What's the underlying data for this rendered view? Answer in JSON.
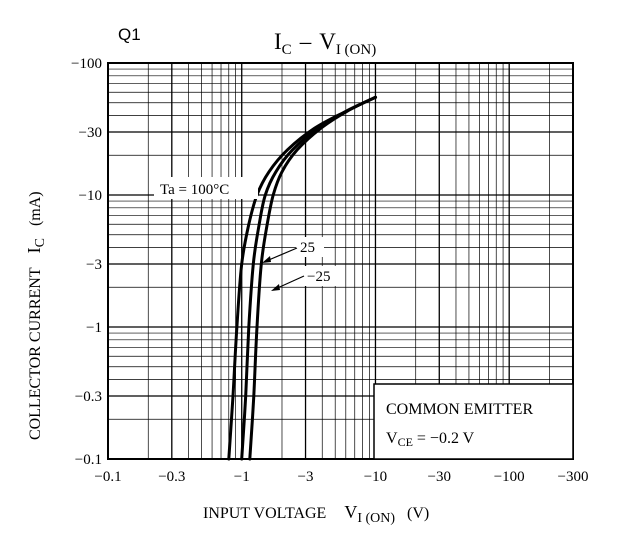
{
  "chart_data": {
    "type": "line",
    "panel_label": "Q1",
    "title": {
      "main": "I",
      "main_sub": "C",
      "dash": "–",
      "second": "V",
      "second_sub": "I (ON)"
    },
    "xlabel": {
      "main": "INPUT VOLTAGE",
      "sym": "V",
      "sym_sub": "I (ON)",
      "unit": "(V)"
    },
    "ylabel": {
      "main": "COLLECTOR CURRENT",
      "sym": "I",
      "sym_sub": "C",
      "unit": "(mA)"
    },
    "x_scale": "log",
    "y_scale": "log",
    "xlim_abs": [
      0.1,
      300
    ],
    "ylim_abs": [
      0.1,
      100
    ],
    "x_ticks": [
      {
        "value": 0.1,
        "label": "−0.1"
      },
      {
        "value": 0.3,
        "label": "−0.3"
      },
      {
        "value": 1,
        "label": "−1"
      },
      {
        "value": 3,
        "label": "−3"
      },
      {
        "value": 10,
        "label": "−10"
      },
      {
        "value": 30,
        "label": "−30"
      },
      {
        "value": 100,
        "label": "−100"
      },
      {
        "value": 300,
        "label": "−300"
      }
    ],
    "y_ticks": [
      {
        "value": 100,
        "label": "−100"
      },
      {
        "value": 30,
        "label": "−30"
      },
      {
        "value": 10,
        "label": "−10"
      },
      {
        "value": 3,
        "label": "−3"
      },
      {
        "value": 1,
        "label": "−1"
      },
      {
        "value": 0.3,
        "label": "−0.3"
      },
      {
        "value": 0.1,
        "label": "−0.1"
      }
    ],
    "grid": true,
    "series": [
      {
        "name": "Ta = 100°C",
        "label": "Ta = 100°C",
        "x": [
          0.8,
          0.86,
          0.92,
          1.0,
          1.13,
          1.3,
          1.6,
          2.2,
          3.5,
          6.0,
          10.0
        ],
        "y": [
          0.1,
          0.3,
          1,
          3,
          6,
          10,
          15,
          22,
          32,
          43,
          55
        ]
      },
      {
        "name": "25",
        "label": "25",
        "x": [
          1.0,
          1.07,
          1.13,
          1.22,
          1.35,
          1.5,
          1.8,
          2.4,
          3.7,
          6.0,
          10.0
        ],
        "y": [
          0.1,
          0.3,
          1,
          3,
          6,
          10,
          15,
          22,
          32,
          43,
          55
        ]
      },
      {
        "name": "−25",
        "label": "−25",
        "x": [
          1.15,
          1.23,
          1.3,
          1.4,
          1.55,
          1.72,
          2.0,
          2.6,
          3.9,
          6.1,
          10.0
        ],
        "y": [
          0.1,
          0.3,
          1,
          3,
          6,
          10,
          15,
          22,
          32,
          43,
          55
        ]
      }
    ],
    "annotations": {
      "box_line1": "COMMON EMITTER",
      "box_line2_sym": "V",
      "box_line2_sub": "CE",
      "box_line2_val": " = −0.2 V"
    }
  }
}
